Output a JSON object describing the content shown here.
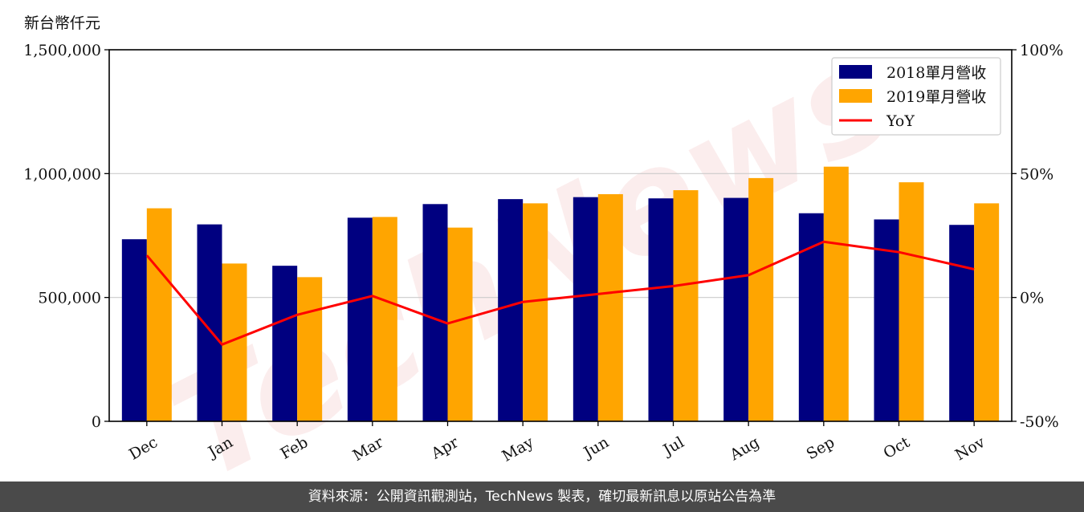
{
  "chart_data": {
    "type": "bar",
    "y_unit_label": "新台幣仟元",
    "categories": [
      "Dec",
      "Jan",
      "Feb",
      "Mar",
      "Apr",
      "May",
      "Jun",
      "Jul",
      "Aug",
      "Sep",
      "Oct",
      "Nov"
    ],
    "series": [
      {
        "name": "2018單月營收",
        "type": "bar",
        "color": "#000080",
        "values": [
          735000,
          795000,
          628000,
          822000,
          877000,
          897000,
          905000,
          900000,
          902000,
          840000,
          815000,
          793000
        ]
      },
      {
        "name": "2019單月營收",
        "type": "bar",
        "color": "#ffa500",
        "values": [
          860000,
          637000,
          582000,
          825000,
          782000,
          880000,
          917000,
          933000,
          982000,
          1028000,
          965000,
          880000
        ]
      },
      {
        "name": "YoY",
        "type": "line",
        "axis": "right",
        "color": "#ff0000",
        "values": [
          17,
          -19,
          -7,
          0.6,
          -10.5,
          -1.8,
          1.4,
          4.6,
          9,
          22.5,
          18.3,
          11.4
        ]
      }
    ],
    "ylim": [
      0,
      1500000
    ],
    "yticks": [
      "0",
      "500,000",
      "1,000,000",
      "1,500,000"
    ],
    "y2lim": [
      -50,
      100
    ],
    "y2ticks": [
      "-50%",
      "0%",
      "50%",
      "100%"
    ],
    "legend_position": "top-right",
    "grid": "horizontal"
  },
  "watermark": "TechNews",
  "footer": {
    "text": "資料來源：公開資訊觀測站，TechNews 製表，確切最新訊息以原站公告為準"
  }
}
